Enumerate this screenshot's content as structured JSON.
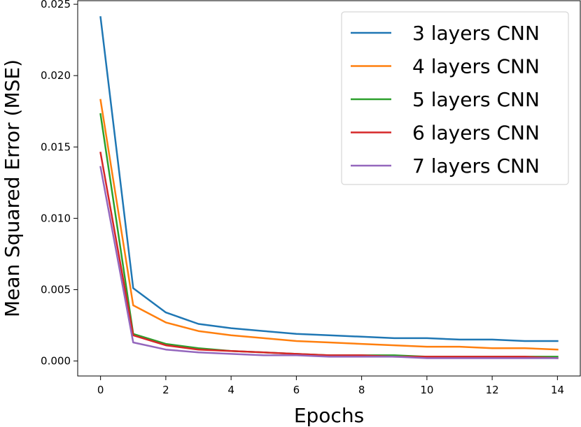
{
  "chart_data": {
    "type": "line",
    "xlabel": "Epochs",
    "ylabel": "Mean Squared Error (MSE)",
    "xlim": [
      -0.7,
      14.7
    ],
    "ylim": [
      -0.00105,
      0.02525
    ],
    "xticks": [
      0,
      2,
      4,
      6,
      8,
      10,
      12,
      14
    ],
    "xtick_labels": [
      "0",
      "2",
      "4",
      "6",
      "8",
      "10",
      "12",
      "14"
    ],
    "yticks": [
      0.0,
      0.005,
      0.01,
      0.015,
      0.02,
      0.025
    ],
    "ytick_labels": [
      "0.000",
      "0.005",
      "0.010",
      "0.015",
      "0.020",
      "0.025"
    ],
    "grid": false,
    "legend_position": "top-right",
    "x": [
      0,
      1,
      2,
      3,
      4,
      5,
      6,
      7,
      8,
      9,
      10,
      11,
      12,
      13,
      14
    ],
    "series": [
      {
        "name": "3 layers CNN",
        "color": "#1f77b4",
        "values": [
          0.0241,
          0.0051,
          0.0034,
          0.0026,
          0.0023,
          0.0021,
          0.0019,
          0.0018,
          0.0017,
          0.0016,
          0.0016,
          0.0015,
          0.0015,
          0.0014,
          0.0014
        ]
      },
      {
        "name": "4 layers CNN",
        "color": "#ff7f0e",
        "values": [
          0.0183,
          0.0039,
          0.0027,
          0.0021,
          0.0018,
          0.0016,
          0.0014,
          0.0013,
          0.0012,
          0.0011,
          0.001,
          0.001,
          0.0009,
          0.0009,
          0.0008
        ]
      },
      {
        "name": "5 layers CNN",
        "color": "#2ca02c",
        "values": [
          0.0173,
          0.0019,
          0.0012,
          0.0009,
          0.0007,
          0.0006,
          0.0005,
          0.0004,
          0.0004,
          0.0004,
          0.0003,
          0.0003,
          0.0003,
          0.0003,
          0.0003
        ]
      },
      {
        "name": "6 layers CNN",
        "color": "#d62728",
        "values": [
          0.0146,
          0.0018,
          0.0011,
          0.0008,
          0.0007,
          0.0006,
          0.0005,
          0.0004,
          0.0004,
          0.0003,
          0.0003,
          0.0003,
          0.0003,
          0.0003,
          0.0002
        ]
      },
      {
        "name": "7 layers CNN",
        "color": "#9467bd",
        "values": [
          0.0136,
          0.0013,
          0.0008,
          0.0006,
          0.0005,
          0.0004,
          0.0004,
          0.0003,
          0.0003,
          0.0003,
          0.0002,
          0.0002,
          0.0002,
          0.0002,
          0.0002
        ]
      }
    ]
  }
}
